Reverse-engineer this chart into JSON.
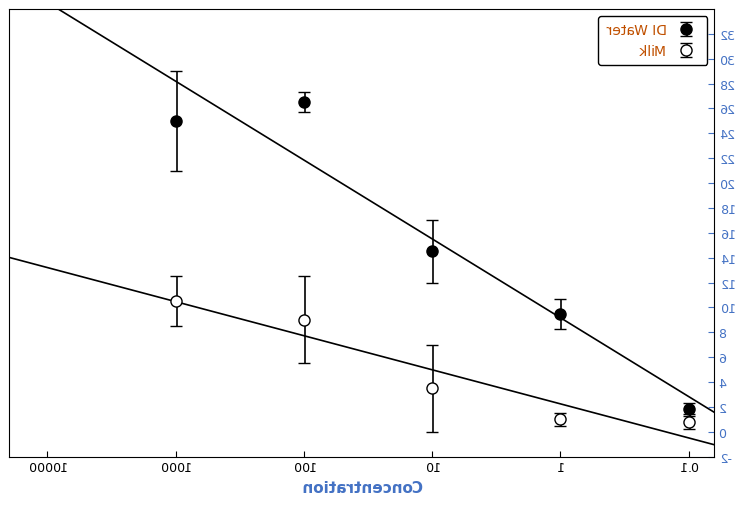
{
  "xlabel": "Concentration",
  "legend_labels": [
    "DI Water",
    "Milk"
  ],
  "x_values": [
    0.1,
    1,
    10,
    100,
    1000
  ],
  "di_water_y": [
    1.8,
    9.5,
    14.5,
    26.5,
    25.0
  ],
  "di_water_yerr": [
    0.5,
    1.2,
    2.5,
    0.8,
    4.0
  ],
  "milk_y": [
    0.8,
    1.0,
    3.5,
    9.0,
    10.5
  ],
  "milk_yerr": [
    0.6,
    0.5,
    3.5,
    3.5,
    2.0
  ],
  "ylim": [
    -2,
    34
  ],
  "xlim_log": [
    -1.2,
    4.3
  ],
  "xtick_positions": [
    0.1,
    1,
    10,
    100,
    1000,
    10000
  ],
  "xtick_labels": [
    "0.1",
    "1",
    "10",
    "100",
    "1000",
    "10000"
  ],
  "line_color": "#000000",
  "marker_size": 8,
  "capsize": 4,
  "elinewidth": 1.2,
  "linewidth": 1.2,
  "figsize": [
    7.56,
    5.16
  ],
  "dpi": 100,
  "background_color": "#ffffff",
  "tick_label_color": "#4472c4",
  "xlabel_color": "#4472c4",
  "legend_di_color": "#c05000",
  "legend_milk_color": "#c05000"
}
